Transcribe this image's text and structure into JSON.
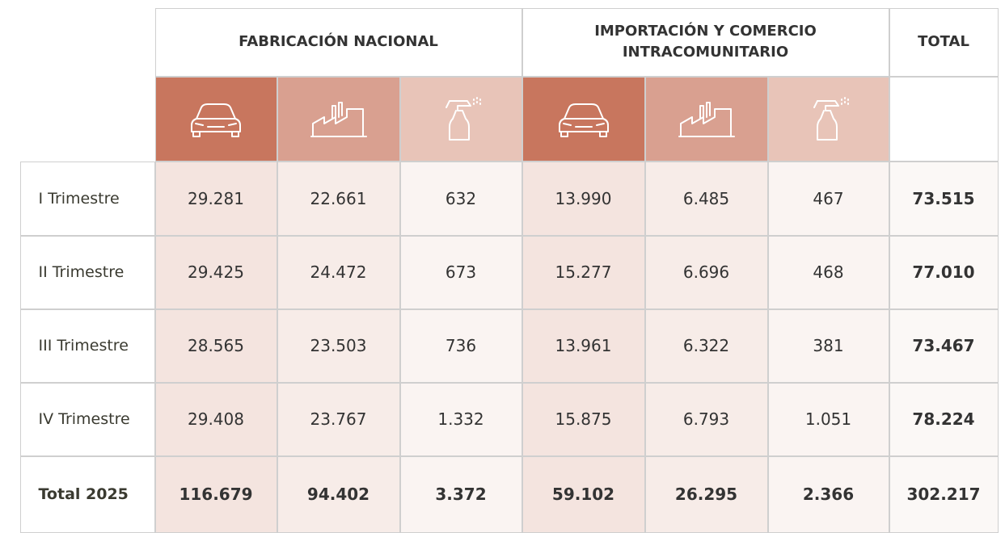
{
  "header": {
    "groups": [
      "FABRICACIÓN NACIONAL",
      "IMPORTACIÓN Y COMERCIO INTRACOMUNITARIO"
    ],
    "total": "TOTAL"
  },
  "rows": [
    {
      "label": "I Trimestre",
      "values": [
        "29.281",
        "22.661",
        "632",
        "13.990",
        "6.485",
        "467"
      ],
      "total": "73.515"
    },
    {
      "label": "II Trimestre",
      "values": [
        "29.425",
        "24.472",
        "673",
        "15.277",
        "6.696",
        "468"
      ],
      "total": "77.010"
    },
    {
      "label": "III Trimestre",
      "values": [
        "28.565",
        "23.503",
        "736",
        "13.961",
        "6.322",
        "381"
      ],
      "total": "73.467"
    },
    {
      "label": "IV Trimestre",
      "values": [
        "29.408",
        "23.767",
        "1.332",
        "15.875",
        "6.793",
        "1.051"
      ],
      "total": "78.224"
    },
    {
      "label": "Total 2025",
      "values": [
        "116.679",
        "94.402",
        "3.372",
        "59.102",
        "26.295",
        "2.366"
      ],
      "total": "302.217"
    }
  ]
}
